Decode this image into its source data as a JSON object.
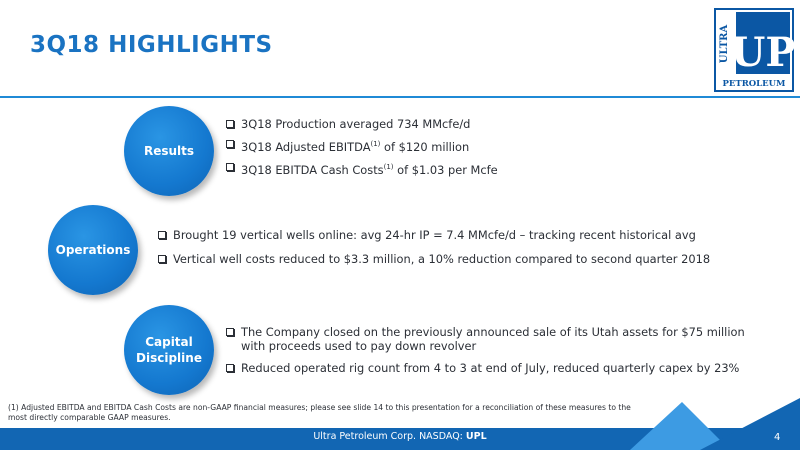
{
  "slide": {
    "title": "3Q18 HIGHLIGHTS",
    "page_number": "4"
  },
  "logo": {
    "word_top": "ULTRA",
    "initials": "UP",
    "word_bottom": "PETROLEUM"
  },
  "sections": [
    {
      "label": "Results",
      "bullets": [
        {
          "pre": "3Q18 Production averaged 734 MMcfe/d",
          "sup": "",
          "post": ""
        },
        {
          "pre": "3Q18 Adjusted EBITDA",
          "sup": "(1)",
          "post": " of $120 million"
        },
        {
          "pre": "3Q18 EBITDA Cash Costs",
          "sup": "(1)",
          "post": " of $1.03 per Mcfe"
        }
      ]
    },
    {
      "label": "Operations",
      "bullets": [
        {
          "pre": "Brought 19 vertical wells online: avg 24-hr IP = 7.4 MMcfe/d – tracking recent historical avg",
          "sup": "",
          "post": ""
        },
        {
          "pre": "Vertical well costs reduced to $3.3 million, a 10% reduction compared to second quarter 2018",
          "sup": "",
          "post": ""
        }
      ]
    },
    {
      "label_line1": "Capital",
      "label_line2": "Discipline",
      "bullets": [
        {
          "pre": "The Company closed on the previously announced sale of its Utah assets for $75 million with proceeds used to pay down revolver",
          "sup": "",
          "post": ""
        },
        {
          "pre": "Reduced operated rig count from 4 to 3 at end of July, reduced quarterly capex by 23%",
          "sup": "",
          "post": ""
        }
      ]
    }
  ],
  "footnote": "(1) Adjusted EBITDA and EBITDA Cash Costs are non-GAAP financial measures; please see slide 14 to this presentation for a reconciliation of these measures to the most directly comparable GAAP measures.",
  "footer": {
    "company": "Ultra Petroleum Corp. NASDAQ: ",
    "ticker": "UPL"
  },
  "colors": {
    "title_blue": "#1a73c2",
    "circle_blue": "#1478cf",
    "footer_blue": "#1266b3",
    "accent_light_blue": "#3d9be3"
  }
}
